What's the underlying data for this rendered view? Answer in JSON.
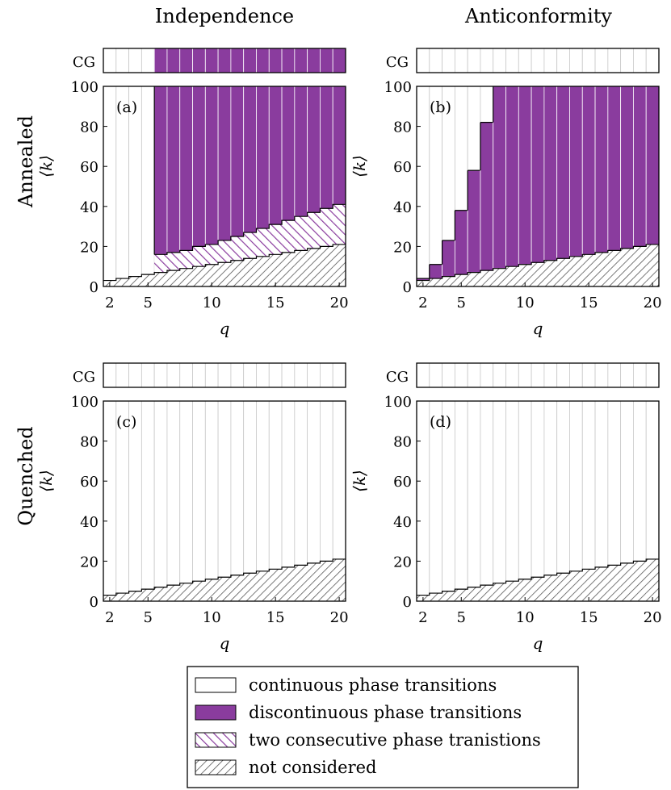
{
  "column_headers": [
    "Independence",
    "Anticonformity"
  ],
  "row_headers": [
    "Annealed",
    "Quenched"
  ],
  "cg_label": "CG",
  "colors": {
    "discontinuous": "#8a3c9e",
    "continuous": "#ffffff",
    "not_considered_hatch": "#555555",
    "two_consecutive_hatch": "#8a3c9e"
  },
  "legend": [
    {
      "key": "continuous",
      "label": "continuous phase transitions"
    },
    {
      "key": "discontinuous",
      "label": "discontinuous phase transitions"
    },
    {
      "key": "two",
      "label": "two consecutive phase tranistions"
    },
    {
      "key": "not_considered",
      "label": "not considered"
    }
  ],
  "chart_data": [
    {
      "panel": "(a)",
      "type": "bar",
      "title": "",
      "xlabel": "q",
      "ylabel": "⟨k⟩",
      "xlim": [
        1.5,
        20.5
      ],
      "ylim": [
        0,
        100
      ],
      "xticks": [
        2,
        5,
        10,
        15,
        20
      ],
      "yticks": [
        0,
        20,
        40,
        60,
        80,
        100
      ],
      "q": [
        2,
        3,
        4,
        5,
        6,
        7,
        8,
        9,
        10,
        11,
        12,
        13,
        14,
        15,
        16,
        17,
        18,
        19,
        20
      ],
      "not_considered_max": [
        3,
        4,
        5,
        6,
        7,
        8,
        9,
        10,
        11,
        12,
        13,
        14,
        15,
        16,
        17,
        18,
        19,
        20,
        21
      ],
      "two_consecutive_upper": [
        0,
        0,
        0,
        0,
        16,
        17,
        18,
        20,
        21,
        23,
        25,
        27,
        29,
        31,
        33,
        35,
        37,
        39,
        41
      ],
      "cg": [
        "continuous",
        "continuous",
        "continuous",
        "continuous",
        "discontinuous",
        "discontinuous",
        "discontinuous",
        "discontinuous",
        "discontinuous",
        "discontinuous",
        "discontinuous",
        "discontinuous",
        "discontinuous",
        "discontinuous",
        "discontinuous",
        "discontinuous",
        "discontinuous",
        "discontinuous",
        "discontinuous"
      ],
      "above": [
        "continuous",
        "continuous",
        "continuous",
        "continuous",
        "discontinuous",
        "discontinuous",
        "discontinuous",
        "discontinuous",
        "discontinuous",
        "discontinuous",
        "discontinuous",
        "discontinuous",
        "discontinuous",
        "discontinuous",
        "discontinuous",
        "discontinuous",
        "discontinuous",
        "discontinuous",
        "discontinuous"
      ],
      "discontinuous_threshold": [
        null,
        null,
        null,
        null,
        null,
        null,
        null,
        null,
        null,
        null,
        null,
        null,
        null,
        null,
        null,
        null,
        null,
        null,
        null
      ]
    },
    {
      "panel": "(b)",
      "type": "bar",
      "title": "",
      "xlabel": "q",
      "ylabel": "⟨k⟩",
      "xlim": [
        1.5,
        20.5
      ],
      "ylim": [
        0,
        100
      ],
      "xticks": [
        2,
        5,
        10,
        15,
        20
      ],
      "yticks": [
        0,
        20,
        40,
        60,
        80,
        100
      ],
      "q": [
        2,
        3,
        4,
        5,
        6,
        7,
        8,
        9,
        10,
        11,
        12,
        13,
        14,
        15,
        16,
        17,
        18,
        19,
        20
      ],
      "not_considered_max": [
        3,
        4,
        5,
        6,
        7,
        8,
        9,
        10,
        11,
        12,
        13,
        14,
        15,
        16,
        17,
        18,
        19,
        20,
        21
      ],
      "two_consecutive_upper": [
        0,
        0,
        0,
        0,
        0,
        0,
        0,
        0,
        0,
        0,
        0,
        0,
        0,
        0,
        0,
        0,
        0,
        0,
        0
      ],
      "cg": [
        "continuous",
        "continuous",
        "continuous",
        "continuous",
        "continuous",
        "continuous",
        "continuous",
        "continuous",
        "continuous",
        "continuous",
        "continuous",
        "continuous",
        "continuous",
        "continuous",
        "continuous",
        "continuous",
        "continuous",
        "continuous",
        "continuous"
      ],
      "above": [
        "split",
        "split",
        "split",
        "split",
        "split",
        "split",
        "discontinuous",
        "discontinuous",
        "discontinuous",
        "discontinuous",
        "discontinuous",
        "discontinuous",
        "discontinuous",
        "discontinuous",
        "discontinuous",
        "discontinuous",
        "discontinuous",
        "discontinuous",
        "discontinuous"
      ],
      "discontinuous_threshold": [
        4,
        11,
        23,
        38,
        58,
        82,
        null,
        null,
        null,
        null,
        null,
        null,
        null,
        null,
        null,
        null,
        null,
        null,
        null
      ]
    },
    {
      "panel": "(c)",
      "type": "bar",
      "title": "",
      "xlabel": "q",
      "ylabel": "⟨k⟩",
      "xlim": [
        1.5,
        20.5
      ],
      "ylim": [
        0,
        100
      ],
      "xticks": [
        2,
        5,
        10,
        15,
        20
      ],
      "yticks": [
        0,
        20,
        40,
        60,
        80,
        100
      ],
      "q": [
        2,
        3,
        4,
        5,
        6,
        7,
        8,
        9,
        10,
        11,
        12,
        13,
        14,
        15,
        16,
        17,
        18,
        19,
        20
      ],
      "not_considered_max": [
        3,
        4,
        5,
        6,
        7,
        8,
        9,
        10,
        11,
        12,
        13,
        14,
        15,
        16,
        17,
        18,
        19,
        20,
        21
      ],
      "two_consecutive_upper": [
        0,
        0,
        0,
        0,
        0,
        0,
        0,
        0,
        0,
        0,
        0,
        0,
        0,
        0,
        0,
        0,
        0,
        0,
        0
      ],
      "cg": [
        "continuous",
        "continuous",
        "continuous",
        "continuous",
        "continuous",
        "continuous",
        "continuous",
        "continuous",
        "continuous",
        "continuous",
        "continuous",
        "continuous",
        "continuous",
        "continuous",
        "continuous",
        "continuous",
        "continuous",
        "continuous",
        "continuous"
      ],
      "above": [
        "continuous",
        "continuous",
        "continuous",
        "continuous",
        "continuous",
        "continuous",
        "continuous",
        "continuous",
        "continuous",
        "continuous",
        "continuous",
        "continuous",
        "continuous",
        "continuous",
        "continuous",
        "continuous",
        "continuous",
        "continuous",
        "continuous"
      ],
      "discontinuous_threshold": [
        null,
        null,
        null,
        null,
        null,
        null,
        null,
        null,
        null,
        null,
        null,
        null,
        null,
        null,
        null,
        null,
        null,
        null,
        null
      ]
    },
    {
      "panel": "(d)",
      "type": "bar",
      "title": "",
      "xlabel": "q",
      "ylabel": "⟨k⟩",
      "xlim": [
        1.5,
        20.5
      ],
      "ylim": [
        0,
        100
      ],
      "xticks": [
        2,
        5,
        10,
        15,
        20
      ],
      "yticks": [
        0,
        20,
        40,
        60,
        80,
        100
      ],
      "q": [
        2,
        3,
        4,
        5,
        6,
        7,
        8,
        9,
        10,
        11,
        12,
        13,
        14,
        15,
        16,
        17,
        18,
        19,
        20
      ],
      "not_considered_max": [
        3,
        4,
        5,
        6,
        7,
        8,
        9,
        10,
        11,
        12,
        13,
        14,
        15,
        16,
        17,
        18,
        19,
        20,
        21
      ],
      "two_consecutive_upper": [
        0,
        0,
        0,
        0,
        0,
        0,
        0,
        0,
        0,
        0,
        0,
        0,
        0,
        0,
        0,
        0,
        0,
        0,
        0
      ],
      "cg": [
        "continuous",
        "continuous",
        "continuous",
        "continuous",
        "continuous",
        "continuous",
        "continuous",
        "continuous",
        "continuous",
        "continuous",
        "continuous",
        "continuous",
        "continuous",
        "continuous",
        "continuous",
        "continuous",
        "continuous",
        "continuous",
        "continuous"
      ],
      "above": [
        "continuous",
        "continuous",
        "continuous",
        "continuous",
        "continuous",
        "continuous",
        "continuous",
        "continuous",
        "continuous",
        "continuous",
        "continuous",
        "continuous",
        "continuous",
        "continuous",
        "continuous",
        "continuous",
        "continuous",
        "continuous",
        "continuous"
      ],
      "discontinuous_threshold": [
        null,
        null,
        null,
        null,
        null,
        null,
        null,
        null,
        null,
        null,
        null,
        null,
        null,
        null,
        null,
        null,
        null,
        null,
        null
      ]
    }
  ]
}
